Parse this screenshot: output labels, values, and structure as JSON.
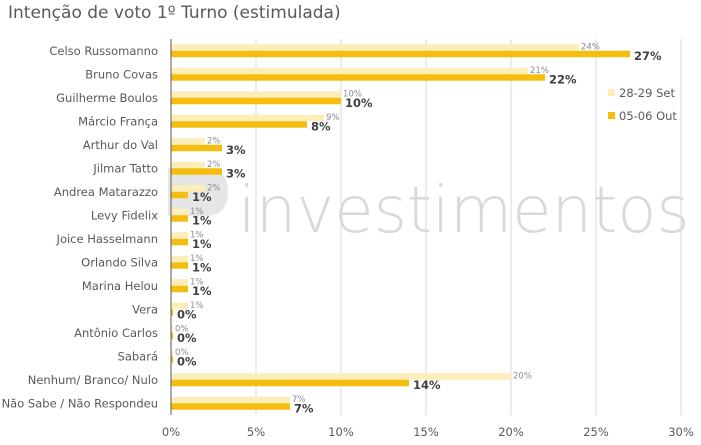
{
  "title": "Intenção de voto 1º Turno (estimulada)",
  "watermark": {
    "text": "investimentos"
  },
  "colors": {
    "series_a": "#fcedb9",
    "series_b": "#f4bd10",
    "grid": "#d9d9d9",
    "axis": "#595959"
  },
  "chart_data": {
    "type": "bar",
    "orientation": "horizontal",
    "title": "Intenção de voto 1º Turno (estimulada)",
    "categories": [
      "Celso Russomanno",
      "Bruno Covas",
      "Guilherme Boulos",
      "Márcio França",
      "Arthur do Val",
      "Jilmar Tatto",
      "Andrea Matarazzo",
      "Levy Fidelix",
      "Joice Hasselmann",
      "Orlando Silva",
      "Marina Helou",
      "Vera",
      "Antônio Carlos",
      "Sabará",
      "Nenhum/ Branco/ Nulo",
      "Não Sabe / Não Respondeu"
    ],
    "series": [
      {
        "name": "28-29 Set",
        "values": [
          24,
          21,
          10,
          9,
          2,
          2,
          2,
          1,
          1,
          1,
          1,
          1,
          0,
          0,
          20,
          7
        ],
        "labels": [
          "24%",
          "21%",
          "10%",
          "9%",
          "2%",
          "2%",
          "2%",
          "1%",
          "1%",
          "1%",
          "1%",
          "1%",
          "0%",
          "0%",
          "20%",
          "7%"
        ]
      },
      {
        "name": "05-06 Out",
        "values": [
          27,
          22,
          10,
          8,
          3,
          3,
          1,
          1,
          1,
          1,
          1,
          0,
          0,
          0,
          14,
          7
        ],
        "labels": [
          "27%",
          "22%",
          "10%",
          "8%",
          "3%",
          "3%",
          "1%",
          "1%",
          "1%",
          "1%",
          "1%",
          "0%",
          "0%",
          "0%",
          "14%",
          "7%"
        ]
      }
    ],
    "xlim": [
      0,
      30
    ],
    "xticks": [
      "0%",
      "5%",
      "10%",
      "15%",
      "20%",
      "25%",
      "30%"
    ],
    "grid": true,
    "legend_position": "right"
  }
}
